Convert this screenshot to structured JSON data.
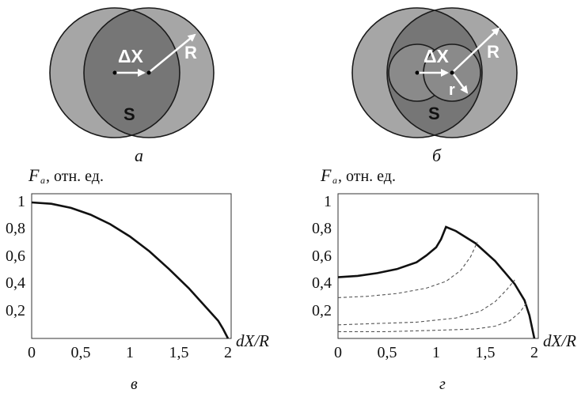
{
  "diagrams": {
    "a": {
      "caption": "а",
      "dx_label": "ΔX",
      "radius_label": "R",
      "area_label": "S"
    },
    "b": {
      "caption": "б",
      "dx_label": "ΔX",
      "radius_label": "R",
      "small_radius_label": "r",
      "area_label": "S"
    }
  },
  "colors": {
    "outer_circle": "#a6a6a6",
    "overlap": "#767676",
    "inner_small": "#8a8a8a",
    "stroke": "#1a1a1a",
    "curve": "#111111",
    "dashed": "#555555"
  },
  "chart_data": [
    {
      "type": "line",
      "caption": "в",
      "ylabel": {
        "main": "F",
        "sub": "a",
        "units": ", отн. ед."
      },
      "xlabel": "dX/R",
      "xlim": [
        0,
        2.1
      ],
      "ylim": [
        0,
        1.03
      ],
      "x_ticks": [
        {
          "value": 0,
          "label": "0"
        },
        {
          "value": 0.5,
          "label": "0,5"
        },
        {
          "value": 1,
          "label": "1"
        },
        {
          "value": 1.5,
          "label": "1,5"
        },
        {
          "value": 2,
          "label": "2"
        }
      ],
      "y_ticks": [
        {
          "value": 1,
          "label": "1"
        },
        {
          "value": 0.8,
          "label": "0,8"
        },
        {
          "value": 0.6,
          "label": "0,6"
        },
        {
          "value": 0.4,
          "label": "0,4"
        },
        {
          "value": 0.2,
          "label": "0,2"
        }
      ],
      "series": [
        {
          "style": "solid",
          "x": [
            0,
            0.2,
            0.4,
            0.6,
            0.8,
            1.0,
            1.2,
            1.4,
            1.6,
            1.8,
            1.9,
            1.95,
            2.0
          ],
          "y": [
            1.0,
            0.99,
            0.96,
            0.91,
            0.84,
            0.75,
            0.64,
            0.51,
            0.37,
            0.21,
            0.13,
            0.07,
            0.0
          ]
        }
      ]
    },
    {
      "type": "line",
      "caption": "г",
      "ylabel": {
        "main": "F",
        "sub": "a",
        "units": ", отн. ед."
      },
      "xlabel": "dX/R",
      "xlim": [
        0,
        2.1
      ],
      "ylim": [
        0,
        1.03
      ],
      "x_ticks": [
        {
          "value": 0,
          "label": "0"
        },
        {
          "value": 0.5,
          "label": "0,5"
        },
        {
          "value": 1,
          "label": "1"
        },
        {
          "value": 1.5,
          "label": "1,5"
        },
        {
          "value": 2,
          "label": "2"
        }
      ],
      "y_ticks": [
        {
          "value": 1,
          "label": "1"
        },
        {
          "value": 0.8,
          "label": "0,8"
        },
        {
          "value": 0.6,
          "label": "0,6"
        },
        {
          "value": 0.4,
          "label": "0,4"
        },
        {
          "value": 0.2,
          "label": "0,2"
        }
      ],
      "series": [
        {
          "style": "solid",
          "x": [
            0,
            0.2,
            0.4,
            0.6,
            0.8,
            0.9,
            1.0,
            1.05,
            1.1,
            1.2,
            1.4,
            1.6,
            1.8,
            1.9,
            1.95,
            2.0
          ],
          "y": [
            0.45,
            0.46,
            0.48,
            0.51,
            0.56,
            0.61,
            0.67,
            0.73,
            0.82,
            0.79,
            0.7,
            0.57,
            0.4,
            0.28,
            0.17,
            0.0
          ]
        },
        {
          "style": "dashed",
          "x": [
            0,
            0.3,
            0.6,
            0.9,
            1.1,
            1.25,
            1.35,
            1.42
          ],
          "y": [
            0.3,
            0.31,
            0.33,
            0.37,
            0.42,
            0.5,
            0.6,
            0.71
          ]
        },
        {
          "style": "dashed",
          "x": [
            0,
            0.4,
            0.8,
            1.2,
            1.45,
            1.6,
            1.72,
            1.8
          ],
          "y": [
            0.1,
            0.11,
            0.12,
            0.15,
            0.2,
            0.27,
            0.36,
            0.43
          ]
        },
        {
          "style": "dashed",
          "x": [
            0,
            0.5,
            1.0,
            1.4,
            1.6,
            1.75,
            1.85,
            1.92
          ],
          "y": [
            0.05,
            0.05,
            0.06,
            0.07,
            0.09,
            0.13,
            0.19,
            0.26
          ]
        }
      ]
    }
  ]
}
